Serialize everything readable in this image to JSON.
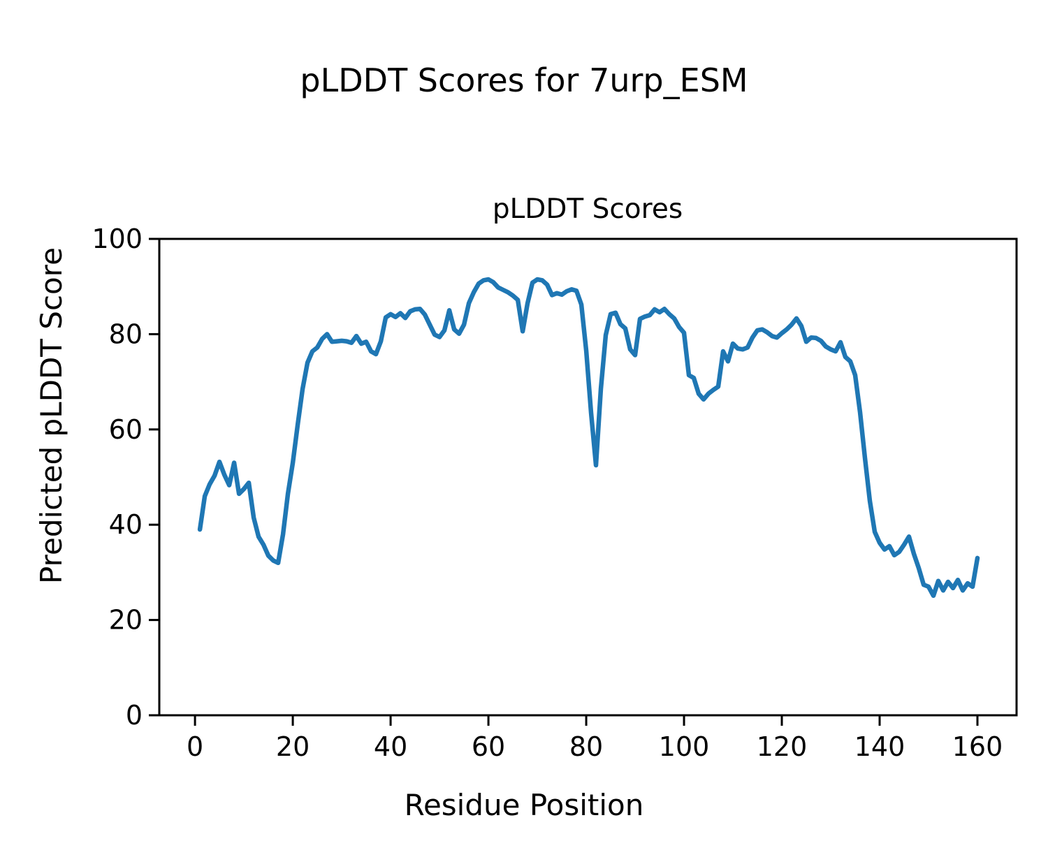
{
  "figure": {
    "suptitle": "pLDDT Scores for 7urp_ESM"
  },
  "chart_data": {
    "type": "line",
    "title": "pLDDT Scores",
    "xlabel": "Residue Position",
    "ylabel": "Predicted pLDDT Score",
    "x_ticks": [
      0,
      20,
      40,
      60,
      80,
      100,
      120,
      140,
      160
    ],
    "y_ticks": [
      0,
      20,
      40,
      60,
      80,
      100
    ],
    "xlim": [
      -7.3,
      168
    ],
    "ylim": [
      0,
      100
    ],
    "grid": false,
    "legend": "none",
    "line_color": "#1f77b4",
    "series": [
      {
        "name": "pLDDT",
        "x": [
          1,
          2,
          3,
          4,
          5,
          6,
          7,
          8,
          9,
          10,
          11,
          12,
          13,
          14,
          15,
          16,
          17,
          18,
          19,
          20,
          21,
          22,
          23,
          24,
          25,
          26,
          27,
          28,
          29,
          30,
          31,
          32,
          33,
          34,
          35,
          36,
          37,
          38,
          39,
          40,
          41,
          42,
          43,
          44,
          45,
          46,
          47,
          48,
          49,
          50,
          51,
          52,
          53,
          54,
          55,
          56,
          57,
          58,
          59,
          60,
          61,
          62,
          63,
          64,
          65,
          66,
          67,
          68,
          69,
          70,
          71,
          72,
          73,
          74,
          75,
          76,
          77,
          78,
          79,
          80,
          81,
          82,
          83,
          84,
          85,
          86,
          87,
          88,
          89,
          90,
          91,
          92,
          93,
          94,
          95,
          96,
          97,
          98,
          99,
          100,
          101,
          102,
          103,
          104,
          105,
          106,
          107,
          108,
          109,
          110,
          111,
          112,
          113,
          114,
          115,
          116,
          117,
          118,
          119,
          120,
          121,
          122,
          123,
          124,
          125,
          126,
          127,
          128,
          129,
          130,
          131,
          132,
          133,
          134,
          135,
          136,
          137,
          138,
          139,
          140,
          141,
          142,
          143,
          144,
          145,
          146,
          147,
          148,
          149,
          150,
          151,
          152,
          153,
          154,
          155,
          156,
          157,
          158,
          159,
          160
        ],
        "values": [
          39.0,
          46.0,
          48.5,
          50.3,
          53.2,
          50.5,
          48.3,
          53.0,
          46.5,
          47.5,
          48.8,
          41.5,
          37.5,
          35.8,
          33.5,
          32.5,
          32.0,
          38.0,
          46.5,
          53.0,
          61.0,
          68.5,
          74.0,
          76.4,
          77.2,
          79.0,
          80.0,
          78.4,
          78.5,
          78.6,
          78.5,
          78.2,
          79.6,
          78.0,
          78.4,
          76.4,
          75.8,
          78.5,
          83.5,
          84.2,
          83.6,
          84.4,
          83.4,
          84.8,
          85.2,
          85.3,
          84.1,
          82.0,
          79.9,
          79.4,
          80.8,
          85.0,
          81.0,
          80.1,
          82.0,
          86.5,
          88.8,
          90.6,
          91.3,
          91.5,
          90.9,
          89.8,
          89.3,
          88.8,
          88.1,
          87.2,
          80.6,
          86.5,
          90.8,
          91.5,
          91.3,
          90.4,
          88.2,
          88.6,
          88.3,
          89.0,
          89.4,
          89.1,
          86.2,
          76.5,
          63.5,
          52.5,
          68.5,
          79.8,
          84.2,
          84.5,
          82.1,
          81.2,
          76.8,
          75.6,
          83.2,
          83.7,
          84.0,
          85.2,
          84.6,
          85.3,
          84.2,
          83.3,
          81.5,
          80.3,
          71.4,
          70.8,
          67.5,
          66.3,
          67.5,
          68.3,
          69.0,
          76.4,
          74.3,
          78.0,
          77.0,
          76.8,
          77.2,
          79.3,
          80.8,
          81.0,
          80.4,
          79.6,
          79.3,
          80.2,
          81.0,
          82.0,
          83.3,
          81.7,
          78.4,
          79.3,
          79.2,
          78.6,
          77.4,
          76.8,
          76.4,
          78.3,
          75.2,
          74.3,
          71.4,
          63.6,
          54.0,
          45.0,
          38.5,
          36.2,
          34.8,
          35.5,
          33.6,
          34.3,
          35.8,
          37.5,
          33.9,
          30.9,
          27.4,
          27.0,
          25.1,
          28.2,
          26.2,
          28.0,
          26.7,
          28.4,
          26.2,
          27.7,
          27.0,
          33.0
        ]
      }
    ]
  }
}
